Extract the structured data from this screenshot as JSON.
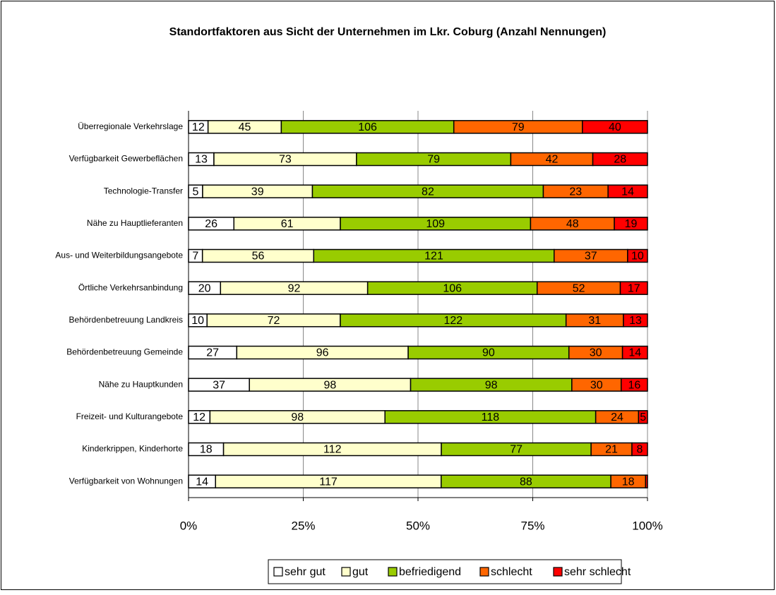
{
  "chart_data": {
    "type": "stacked_bar_100",
    "title": "Standortfaktoren aus Sicht der Unternehmen im Lkr. Coburg (Anzahl Nennungen)",
    "categories": [
      "Überregionale Verkehrslage",
      "Verfügbarkeit Gewerbeflächen",
      "Technologie-Transfer",
      "Nähe zu Hauptlieferanten",
      "Aus- und Weiterbildungsangebote",
      "Örtliche Verkehrsanbindung",
      "Behördenbetreuung Landkreis",
      "Behördenbetreuung Gemeinde",
      "Nähe zu Hauptkunden",
      "Freizeit- und Kulturangebote",
      "Kinderkrippen, Kinderhorte",
      "Verfügbarkeit von Wohnungen"
    ],
    "series": [
      {
        "name": "sehr gut",
        "color": "#ffffff",
        "values": [
          12,
          13,
          5,
          26,
          7,
          20,
          10,
          27,
          37,
          12,
          18,
          14
        ]
      },
      {
        "name": "gut",
        "color": "#ffffcc",
        "values": [
          45,
          73,
          39,
          61,
          56,
          92,
          72,
          96,
          98,
          98,
          112,
          117
        ]
      },
      {
        "name": "befriedigend",
        "color": "#99cc00",
        "values": [
          106,
          79,
          82,
          109,
          121,
          106,
          122,
          90,
          98,
          118,
          77,
          88
        ]
      },
      {
        "name": "schlecht",
        "color": "#ff6600",
        "values": [
          79,
          42,
          23,
          48,
          37,
          52,
          31,
          30,
          30,
          24,
          21,
          18
        ]
      },
      {
        "name": "sehr schlecht",
        "color": "#ff0000",
        "values": [
          40,
          28,
          14,
          19,
          10,
          17,
          13,
          14,
          16,
          5,
          8,
          1
        ]
      }
    ],
    "xlim": [
      0,
      100
    ],
    "xticks": [
      {
        "value": 0,
        "label": "0%"
      },
      {
        "value": 25,
        "label": "25%"
      },
      {
        "value": 50,
        "label": "50%"
      },
      {
        "value": 75,
        "label": "75%"
      },
      {
        "value": 100,
        "label": "100%"
      }
    ],
    "grid": true,
    "legend": "bottom"
  }
}
